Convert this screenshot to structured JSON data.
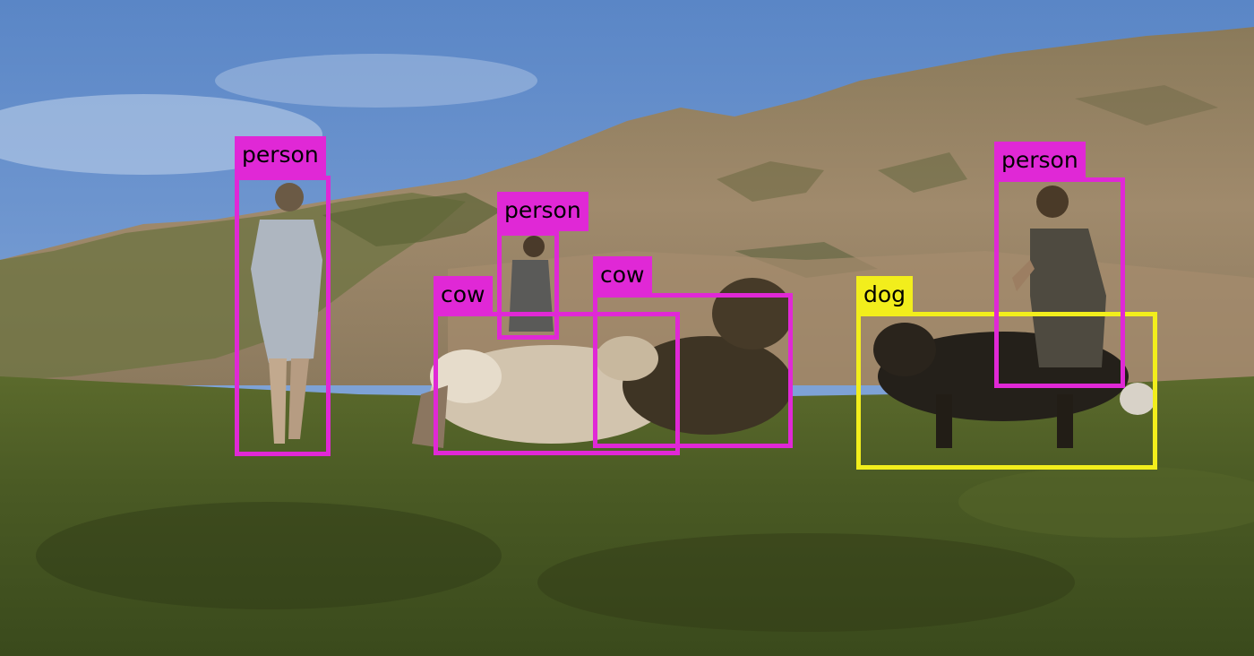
{
  "colors": {
    "person": "#e028d6",
    "cow": "#e028d6",
    "dog": "#f2ee1c"
  },
  "detections": [
    {
      "id": "person-1",
      "label": "person",
      "class": "person"
    },
    {
      "id": "person-2",
      "label": "person",
      "class": "person"
    },
    {
      "id": "cow-1",
      "label": "cow",
      "class": "cow"
    },
    {
      "id": "cow-2",
      "label": "cow",
      "class": "cow"
    },
    {
      "id": "dog-1",
      "label": "dog",
      "class": "dog"
    },
    {
      "id": "person-3",
      "label": "person",
      "class": "person"
    }
  ]
}
